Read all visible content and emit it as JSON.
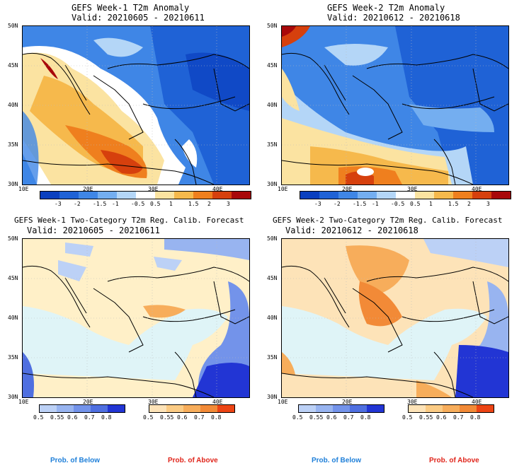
{
  "panels": [
    {
      "title": "GEFS Week-1 T2m Anomaly",
      "valid": "Valid: 20210605 - 20210611"
    },
    {
      "title": "GEFS Week-2 T2m Anomaly",
      "valid": "Valid: 20210612 - 20210618"
    },
    {
      "title": "GEFS Week-1 Two-Category T2m Reg. Calib. Forecast",
      "valid": "Valid: 20210605 - 20210611"
    },
    {
      "title": "GEFS Week-2 Two-Category T2m Reg. Calib. Forecast",
      "valid": "Valid: 20210612 - 20210618"
    }
  ],
  "lat_ticks": [
    "50N",
    "45N",
    "40N",
    "35N",
    "30N"
  ],
  "lon_ticks": [
    "10E",
    "20E",
    "30E",
    "40E"
  ],
  "anomaly_colorbar": {
    "labels": [
      "-3",
      "-2",
      "-1.5",
      "-1",
      "-0.5",
      "0.5",
      "1",
      "1.5",
      "2",
      "3"
    ],
    "colors": [
      "#0a3fbf",
      "#1f62d6",
      "#3f86e6",
      "#74aef0",
      "#b4d6f7",
      "#ffffff",
      "#fbe3a1",
      "#f6b94c",
      "#ef7f1e",
      "#d6400d",
      "#a8080a"
    ]
  },
  "prob_colorbar_below": {
    "labels": [
      "0.5",
      "0.55",
      "0.6",
      "0.7",
      "0.8"
    ],
    "colors": [
      "#bcd1f6",
      "#98b4f0",
      "#7393ea",
      "#4f6fe0",
      "#2235d4"
    ]
  },
  "prob_colorbar_above": {
    "labels": [
      "0.5",
      "0.55",
      "0.6",
      "0.7",
      "0.8"
    ],
    "colors": [
      "#fde3b8",
      "#fbcb84",
      "#f7ad5b",
      "#f28a37",
      "#ec4414"
    ]
  },
  "footer": {
    "below_label": "Prob. of Below",
    "above_label": "Prob. of Above",
    "below_color": "#1e7fd9",
    "above_color": "#e0251b"
  },
  "sea_color": "#dff4f7",
  "land_prob_base": "#fff0c8"
}
